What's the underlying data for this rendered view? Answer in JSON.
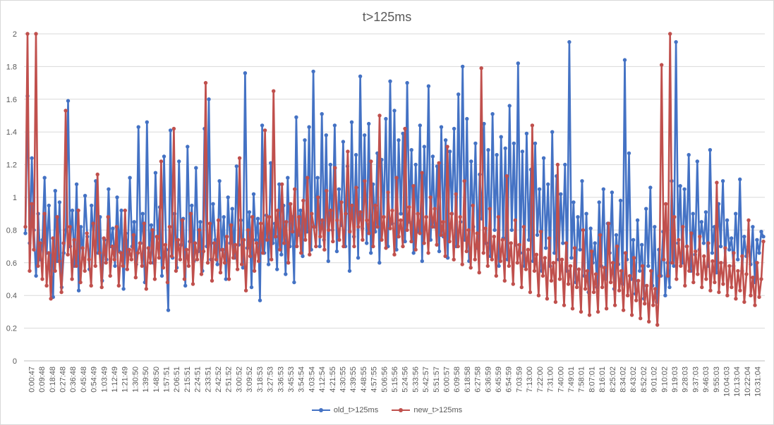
{
  "chart_data": {
    "type": "line",
    "title": "t>125ms",
    "xlabel": "",
    "ylabel": "",
    "ylim": [
      0,
      2
    ],
    "yticks": [
      "0",
      "0.2",
      "0.4",
      "0.6",
      "0.8",
      "1",
      "1.2",
      "1.4",
      "1.6",
      "1.8",
      "2"
    ],
    "xticks": [
      "0:00:47",
      "0:09:48",
      "0:18:48",
      "0:27:48",
      "0:36:48",
      "0:45:48",
      "0:54:49",
      "1:03:49",
      "1:12:49",
      "1:21:49",
      "1:30:50",
      "1:39:50",
      "1:48:50",
      "1:57:51",
      "2:06:51",
      "2:15:51",
      "2:24:51",
      "2:33:51",
      "2:42:52",
      "2:51:52",
      "3:00:52",
      "3:09:52",
      "3:18:53",
      "3:27:53",
      "3:36:53",
      "3:45:53",
      "3:54:54",
      "4:03:54",
      "4:12:54",
      "4:21:55",
      "4:30:55",
      "4:39:55",
      "4:48:55",
      "4:57:55",
      "5:06:56",
      "5:15:56",
      "5:24:56",
      "5:33:56",
      "5:42:57",
      "5:51:57",
      "6:00:57",
      "6:09:58",
      "6:18:58",
      "6:27:58",
      "6:36:59",
      "6:45:59",
      "6:54:59",
      "7:03:59",
      "7:13:00",
      "7:22:00",
      "7:31:00",
      "7:40:00",
      "7:49:01",
      "7:58:01",
      "8:07:01",
      "8:16:01",
      "8:25:02",
      "8:34:02",
      "8:43:02",
      "8:52:02",
      "9:01:02",
      "9:10:02",
      "9:19:03",
      "9:28:03",
      "9:37:03",
      "9:46:03",
      "9:55:03",
      "10:04:03",
      "10:13:04",
      "10:22:04",
      "10:31:04"
    ],
    "grid": true,
    "legend_position": "bottom",
    "series": [
      {
        "name": "old_t>125ms",
        "color": "#4472c4",
        "values": [
          0.78,
          1.62,
          0.72,
          1.24,
          0.8,
          0.52,
          0.9,
          0.62,
          0.74,
          1.12,
          0.66,
          0.95,
          0.58,
          0.39,
          1.04,
          0.61,
          0.97,
          0.45,
          0.66,
          0.8,
          1.59,
          0.7,
          0.92,
          0.58,
          1.08,
          0.43,
          0.82,
          0.63,
          1.01,
          0.76,
          0.56,
          0.95,
          0.72,
          1.1,
          0.66,
          0.88,
          0.49,
          0.74,
          0.62,
          1.05,
          0.7,
          0.81,
          0.58,
          1.0,
          0.67,
          0.92,
          0.44,
          0.78,
          0.65,
          1.12,
          0.7,
          0.85,
          0.59,
          1.43,
          0.72,
          0.9,
          0.48,
          1.46,
          0.66,
          0.83,
          0.6,
          1.15,
          0.75,
          0.94,
          0.52,
          1.25,
          0.68,
          0.31,
          1.41,
          0.63,
          0.9,
          0.57,
          1.22,
          0.71,
          0.87,
          0.46,
          1.31,
          0.73,
          0.95,
          0.61,
          1.18,
          0.67,
          0.85,
          0.55,
          1.42,
          0.7,
          1.6,
          0.62,
          0.96,
          0.74,
          0.59,
          1.1,
          0.68,
          0.88,
          0.5,
          1.0,
          0.72,
          0.93,
          0.63,
          1.19,
          0.71,
          0.86,
          0.57,
          1.76,
          0.69,
          0.91,
          0.45,
          1.02,
          0.74,
          0.87,
          0.37,
          1.44,
          0.66,
          0.89,
          0.59,
          1.21,
          0.72,
          0.84,
          0.56,
          1.08,
          0.65,
          0.95,
          0.53,
          1.12,
          0.7,
          0.88,
          0.48,
          1.49,
          0.77,
          0.92,
          0.64,
          1.35,
          0.79,
          1.43,
          0.68,
          1.77,
          0.82,
          1.12,
          0.7,
          1.51,
          0.74,
          1.38,
          0.61,
          1.2,
          0.8,
          1.44,
          0.67,
          1.05,
          0.83,
          1.34,
          0.7,
          1.19,
          0.55,
          1.46,
          0.76,
          1.26,
          0.63,
          1.74,
          0.81,
          1.38,
          0.72,
          1.45,
          0.66,
          1.08,
          0.79,
          1.27,
          0.6,
          1.23,
          0.88,
          1.48,
          0.7,
          1.71,
          0.84,
          1.53,
          0.68,
          1.35,
          0.9,
          1.39,
          0.73,
          1.7,
          0.85,
          1.29,
          0.66,
          1.2,
          0.79,
          1.44,
          0.61,
          1.31,
          0.88,
          1.68,
          0.74,
          1.25,
          0.82,
          1.19,
          0.67,
          1.43,
          0.76,
          1.35,
          0.63,
          1.28,
          0.9,
          1.42,
          0.7,
          1.63,
          0.85,
          1.8,
          0.74,
          1.48,
          0.61,
          1.22,
          0.82,
          1.33,
          0.69,
          1.14,
          0.87,
          1.45,
          0.72,
          1.29,
          0.64,
          1.51,
          0.8,
          1.26,
          0.58,
          1.37,
          0.75,
          1.3,
          0.62,
          1.56,
          0.8,
          1.33,
          0.71,
          1.82,
          0.66,
          1.28,
          0.58,
          1.39,
          0.74,
          1.17,
          0.61,
          1.33,
          0.77,
          1.05,
          0.55,
          1.24,
          0.69,
          1.08,
          0.58,
          1.4,
          0.66,
          1.13,
          0.62,
          1.02,
          0.72,
          1.2,
          0.55,
          1.95,
          0.63,
          0.97,
          0.48,
          0.88,
          0.68,
          1.1,
          0.52,
          0.9,
          0.42,
          0.81,
          0.6,
          0.72,
          0.45,
          0.97,
          0.58,
          1.05,
          0.5,
          0.84,
          0.66,
          1.03,
          0.44,
          0.77,
          0.59,
          0.98,
          0.47,
          1.84,
          0.62,
          1.27,
          0.5,
          0.74,
          0.41,
          0.86,
          0.55,
          0.71,
          0.38,
          0.93,
          0.58,
          1.06,
          0.46,
          0.82,
          0.36,
          0.68,
          0.52,
          0.79,
          0.4,
          0.6,
          0.45,
          1.1,
          0.58,
          1.95,
          0.72,
          1.07,
          0.6,
          1.05,
          0.7,
          1.26,
          0.55,
          0.9,
          0.65,
          1.22,
          0.68,
          0.85,
          0.72,
          0.91,
          0.58,
          1.29,
          0.66,
          0.82,
          0.54,
          0.96,
          0.7,
          1.1,
          0.6,
          0.86,
          0.68,
          0.75,
          0.58,
          0.9,
          0.62,
          1.11,
          0.55,
          0.76,
          0.64,
          0.7,
          0.59,
          0.82,
          0.48,
          0.74,
          0.66,
          0.79,
          0.76
        ]
      },
      {
        "name": "new_t>125ms",
        "color": "#c0504d",
        "values": [
          0.82,
          2.0,
          0.55,
          0.96,
          0.68,
          2.0,
          0.58,
          0.72,
          0.5,
          0.9,
          0.46,
          0.66,
          0.38,
          0.75,
          0.55,
          0.88,
          0.61,
          0.42,
          0.72,
          1.53,
          0.65,
          0.82,
          0.5,
          0.74,
          0.58,
          0.92,
          0.48,
          0.69,
          0.55,
          0.78,
          0.62,
          0.46,
          0.84,
          0.58,
          1.14,
          0.66,
          0.45,
          0.75,
          0.6,
          0.88,
          0.52,
          0.7,
          0.62,
          0.82,
          0.46,
          0.66,
          0.58,
          0.92,
          0.56,
          0.68,
          0.62,
          0.77,
          0.51,
          0.66,
          0.72,
          0.58,
          0.84,
          0.44,
          0.69,
          0.6,
          0.8,
          0.5,
          0.76,
          0.63,
          1.22,
          0.57,
          0.71,
          0.48,
          0.82,
          0.64,
          1.42,
          0.55,
          0.74,
          0.62,
          0.86,
          0.5,
          0.68,
          0.58,
          0.9,
          0.47,
          0.72,
          0.62,
          0.8,
          0.53,
          0.67,
          1.7,
          0.6,
          0.84,
          0.49,
          0.72,
          0.62,
          0.86,
          0.54,
          0.68,
          0.6,
          0.76,
          0.5,
          0.83,
          0.63,
          0.71,
          0.56,
          1.24,
          0.59,
          0.74,
          0.43,
          0.8,
          0.64,
          0.88,
          0.55,
          0.72,
          0.61,
          0.84,
          0.66,
          1.41,
          0.74,
          0.88,
          0.62,
          1.65,
          0.76,
          0.92,
          0.68,
          1.08,
          0.72,
          0.85,
          0.6,
          0.96,
          0.79,
          1.05,
          0.7,
          0.88,
          0.66,
          0.98,
          0.74,
          1.12,
          0.65,
          0.9,
          0.82,
          0.7,
          1.0,
          0.76,
          0.86,
          0.68,
          1.04,
          0.8,
          0.92,
          0.73,
          1.18,
          0.86,
          0.74,
          0.97,
          0.7,
          0.9,
          1.28,
          0.79,
          0.95,
          0.7,
          1.06,
          0.82,
          0.91,
          0.74,
          1.1,
          0.86,
          0.78,
          1.22,
          0.7,
          0.95,
          0.82,
          1.5,
          0.74,
          0.88,
          0.69,
          1.03,
          0.81,
          0.92,
          0.65,
          1.12,
          0.76,
          0.86,
          0.7,
          1.42,
          0.8,
          0.94,
          0.73,
          1.07,
          0.68,
          0.9,
          0.78,
          1.15,
          0.72,
          0.88,
          0.66,
          1.0,
          0.82,
          0.93,
          0.71,
          1.21,
          0.77,
          0.85,
          0.64,
          1.31,
          0.73,
          0.9,
          0.62,
          1.02,
          0.7,
          0.88,
          0.59,
          1.1,
          0.67,
          0.8,
          0.57,
          0.95,
          0.62,
          0.78,
          0.54,
          1.79,
          0.66,
          0.81,
          0.58,
          0.93,
          0.62,
          0.76,
          0.52,
          0.88,
          0.61,
          0.74,
          0.49,
          1.13,
          0.58,
          0.72,
          0.47,
          0.86,
          0.6,
          0.71,
          0.45,
          0.82,
          0.56,
          0.68,
          0.42,
          1.44,
          0.55,
          0.65,
          0.4,
          0.79,
          0.52,
          0.63,
          0.38,
          0.75,
          0.49,
          0.6,
          0.36,
          1.2,
          0.5,
          0.62,
          0.34,
          0.72,
          0.47,
          0.58,
          0.32,
          0.69,
          0.45,
          0.56,
          0.3,
          0.8,
          0.44,
          0.55,
          0.28,
          0.67,
          0.42,
          0.53,
          0.3,
          0.77,
          0.45,
          0.57,
          0.32,
          0.84,
          0.48,
          0.6,
          0.34,
          0.7,
          0.43,
          0.55,
          0.31,
          0.66,
          0.4,
          0.52,
          0.28,
          0.63,
          0.37,
          0.49,
          0.26,
          0.58,
          0.35,
          0.46,
          0.24,
          0.55,
          0.34,
          0.44,
          0.22,
          0.52,
          1.81,
          0.62,
          0.96,
          0.52,
          2.0,
          0.6,
          0.88,
          0.5,
          0.74,
          0.58,
          0.82,
          0.46,
          0.7,
          0.55,
          0.78,
          0.48,
          0.67,
          0.53,
          0.76,
          0.45,
          0.64,
          0.5,
          0.72,
          0.43,
          0.61,
          0.48,
          1.09,
          0.42,
          0.6,
          0.47,
          0.69,
          0.4,
          0.58,
          0.45,
          0.66,
          0.38,
          0.55,
          0.43,
          0.64,
          0.36,
          0.53,
          0.86,
          0.4,
          0.51,
          0.34,
          0.6,
          0.39,
          0.5,
          0.73
        ]
      }
    ]
  }
}
